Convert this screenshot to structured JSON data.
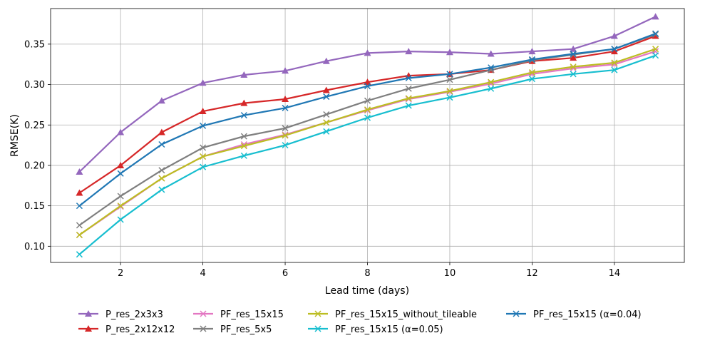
{
  "chart_data": {
    "type": "line",
    "title": "",
    "xlabel": "Lead time (days)",
    "ylabel": "RMSE(K)",
    "xlim": [
      0.3,
      15.7
    ],
    "ylim": [
      0.08,
      0.394
    ],
    "x_ticks": [
      2,
      4,
      6,
      8,
      10,
      12,
      14
    ],
    "y_ticks": [
      0.1,
      0.15,
      0.2,
      0.25,
      0.3,
      0.35
    ],
    "y_tick_labels": [
      "0.10",
      "0.15",
      "0.20",
      "0.25",
      "0.30",
      "0.35"
    ],
    "grid": true,
    "legend_placement": "bottom (below axes, 4 columns)",
    "x": [
      1,
      2,
      3,
      4,
      5,
      6,
      7,
      8,
      9,
      10,
      11,
      12,
      13,
      14,
      15
    ],
    "series": [
      {
        "name": "P_res_2x3x3",
        "color": "#9467bd",
        "marker": "triangle",
        "values": [
          0.192,
          0.241,
          0.28,
          0.302,
          0.312,
          0.317,
          0.329,
          0.339,
          0.341,
          0.34,
          0.338,
          0.341,
          0.344,
          0.36,
          0.384
        ]
      },
      {
        "name": "P_res_2x12x12",
        "color": "#d62728",
        "marker": "triangle",
        "values": [
          0.166,
          0.2,
          0.241,
          0.267,
          0.277,
          0.282,
          0.293,
          0.303,
          0.311,
          0.313,
          0.318,
          0.329,
          0.333,
          0.341,
          0.36
        ]
      },
      {
        "name": "PF_res_15x15",
        "color": "#e377c2",
        "marker": "x",
        "values": [
          0.114,
          0.149,
          0.184,
          0.211,
          0.226,
          0.238,
          0.253,
          0.268,
          0.282,
          0.291,
          0.301,
          0.313,
          0.32,
          0.325,
          0.341
        ]
      },
      {
        "name": "PF_res_5x5",
        "color": "#7f7f7f",
        "marker": "x",
        "values": [
          0.126,
          0.162,
          0.194,
          0.222,
          0.236,
          0.246,
          0.263,
          0.28,
          0.295,
          0.306,
          0.318,
          0.33,
          0.337,
          0.344,
          0.362
        ]
      },
      {
        "name": "PF_res_15x15_without_tileable",
        "color": "#bcbd22",
        "marker": "x",
        "values": [
          0.114,
          0.15,
          0.184,
          0.211,
          0.224,
          0.237,
          0.253,
          0.269,
          0.283,
          0.292,
          0.303,
          0.315,
          0.322,
          0.327,
          0.344
        ]
      },
      {
        "name": "PF_res_15x15 (α=0.05)",
        "color": "#17becf",
        "marker": "x",
        "values": [
          0.09,
          0.133,
          0.17,
          0.198,
          0.212,
          0.225,
          0.242,
          0.259,
          0.274,
          0.284,
          0.295,
          0.307,
          0.313,
          0.318,
          0.336
        ]
      },
      {
        "name": "PF_res_15x15 (α=0.04)",
        "color": "#1f77b4",
        "marker": "x",
        "values": [
          0.15,
          0.19,
          0.226,
          0.249,
          0.262,
          0.271,
          0.285,
          0.298,
          0.308,
          0.313,
          0.321,
          0.331,
          0.338,
          0.344,
          0.363
        ]
      }
    ],
    "legend_order": [
      0,
      2,
      4,
      6,
      1,
      3,
      5
    ]
  }
}
